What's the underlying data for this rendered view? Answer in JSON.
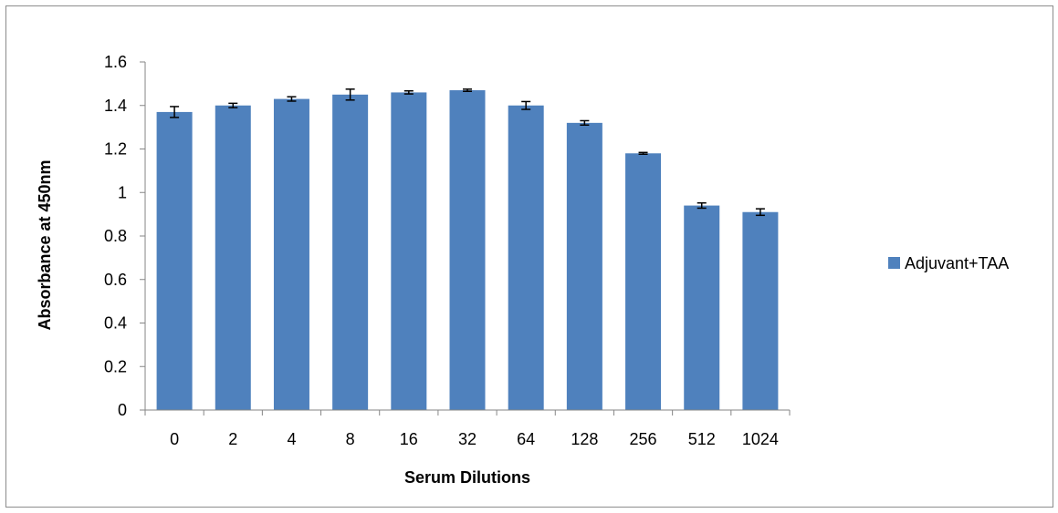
{
  "chart_data": {
    "type": "bar",
    "title": "",
    "xlabel": "Serum Dilutions",
    "ylabel": "Absorbance at 450nm",
    "ylim": [
      0,
      1.6
    ],
    "yticks": [
      "0",
      "0.2",
      "0.4",
      "0.6",
      "0.8",
      "1",
      "1.2",
      "1.4",
      "1.6"
    ],
    "categories": [
      "0",
      "2",
      "4",
      "8",
      "16",
      "32",
      "64",
      "128",
      "256",
      "512",
      "1024"
    ],
    "series": [
      {
        "name": "Adjuvant+TAA",
        "color": "#4F81BD",
        "values": [
          1.37,
          1.4,
          1.43,
          1.45,
          1.46,
          1.47,
          1.4,
          1.32,
          1.18,
          0.94,
          0.91
        ],
        "errors": [
          0.025,
          0.01,
          0.01,
          0.025,
          0.007,
          0.005,
          0.018,
          0.01,
          0.004,
          0.012,
          0.015
        ]
      }
    ],
    "grid": false,
    "legend": "right"
  }
}
